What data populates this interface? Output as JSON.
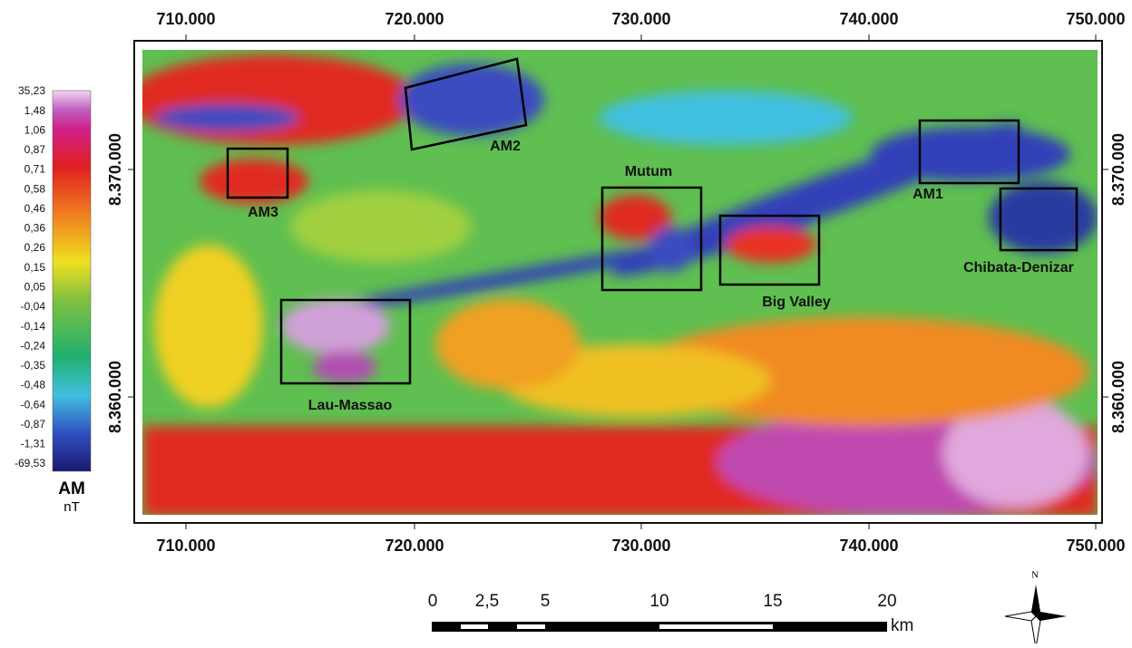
{
  "axes": {
    "x_labels": [
      "710.000",
      "720.000",
      "730.000",
      "740.000",
      "750.000"
    ],
    "y_labels": [
      "8.370.000",
      "8.360.000"
    ]
  },
  "legend": {
    "values": [
      "35,23",
      "1,48",
      "1,06",
      "0,87",
      "0,71",
      "0,58",
      "0,46",
      "0,36",
      "0,26",
      "0,15",
      "0,05",
      "-0,04",
      "-0,14",
      "-0,24",
      "-0,35",
      "-0,48",
      "-0,64",
      "-0,87",
      "-1,31",
      "-69,53"
    ],
    "title": "AM",
    "unit": "nT"
  },
  "areas": [
    {
      "label": "AM3"
    },
    {
      "label": "AM2"
    },
    {
      "label": "Mutum"
    },
    {
      "label": "Big Valley"
    },
    {
      "label": "AM1"
    },
    {
      "label": "Chibata-Denizar"
    },
    {
      "label": "Lau-Massao"
    }
  ],
  "scale_bar": {
    "ticks": [
      "0",
      "2,5",
      "5",
      "10",
      "15",
      "20"
    ],
    "unit": "km"
  },
  "north": "N"
}
